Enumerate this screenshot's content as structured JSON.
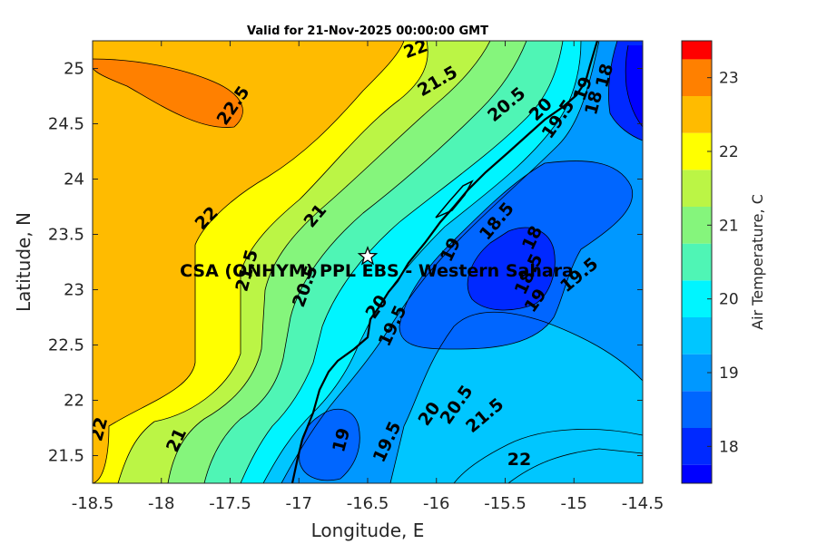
{
  "title": "Valid for 21-Nov-2025 00:00:00 GMT",
  "x_axis_label": "Longitude, E",
  "y_axis_label": "Latitude, N",
  "x_ticks": [
    "-18.5",
    "-18",
    "-17.5",
    "-17",
    "-16.5",
    "-16",
    "-15.5",
    "-15",
    "-14.5"
  ],
  "y_ticks": [
    "25",
    "24.5",
    "24",
    "23.5",
    "23",
    "22.5",
    "22",
    "21.5"
  ],
  "colorbar": {
    "label": "Air Temperature, C",
    "ticks": [
      "23",
      "22",
      "21",
      "20",
      "19",
      "18"
    ],
    "levels": [
      {
        "min": 17.5,
        "max": 17.75,
        "color": "#0000ff"
      },
      {
        "min": 17.75,
        "max": 18.25,
        "color": "#0029ff"
      },
      {
        "min": 18.25,
        "max": 18.75,
        "color": "#0066ff"
      },
      {
        "min": 18.75,
        "max": 19.25,
        "color": "#0098ff"
      },
      {
        "min": 19.25,
        "max": 19.75,
        "color": "#00c6ff"
      },
      {
        "min": 19.75,
        "max": 20.25,
        "color": "#00f5ff"
      },
      {
        "min": 20.25,
        "max": 20.75,
        "color": "#4ff5b5"
      },
      {
        "min": 20.75,
        "max": 21.25,
        "color": "#85f57c"
      },
      {
        "min": 21.25,
        "max": 21.75,
        "color": "#bbf545"
      },
      {
        "min": 21.75,
        "max": 22.25,
        "color": "#ffff00"
      },
      {
        "min": 22.25,
        "max": 22.75,
        "color": "#ffbb00"
      },
      {
        "min": 22.75,
        "max": 23.25,
        "color": "#ff8000"
      },
      {
        "min": 23.25,
        "max": 23.5,
        "color": "#ff4a00"
      }
    ],
    "top_color": "#ff0000"
  },
  "station": {
    "name": "CSA (ONHYM) PPL EBS - Western Sahara",
    "lon": -16.5,
    "lat": 23.3
  },
  "contour_labels": [
    "22",
    "22.5",
    "21.5",
    "20.5",
    "20",
    "19.5",
    "19",
    "18",
    "18",
    "22",
    "21",
    "21.5",
    "20.5",
    "18.5",
    "19",
    "18",
    "18.5",
    "19",
    "19.5",
    "20",
    "19.5",
    "22",
    "21",
    "19",
    "19.5",
    "20",
    "20.5",
    "21.5",
    "22"
  ]
}
